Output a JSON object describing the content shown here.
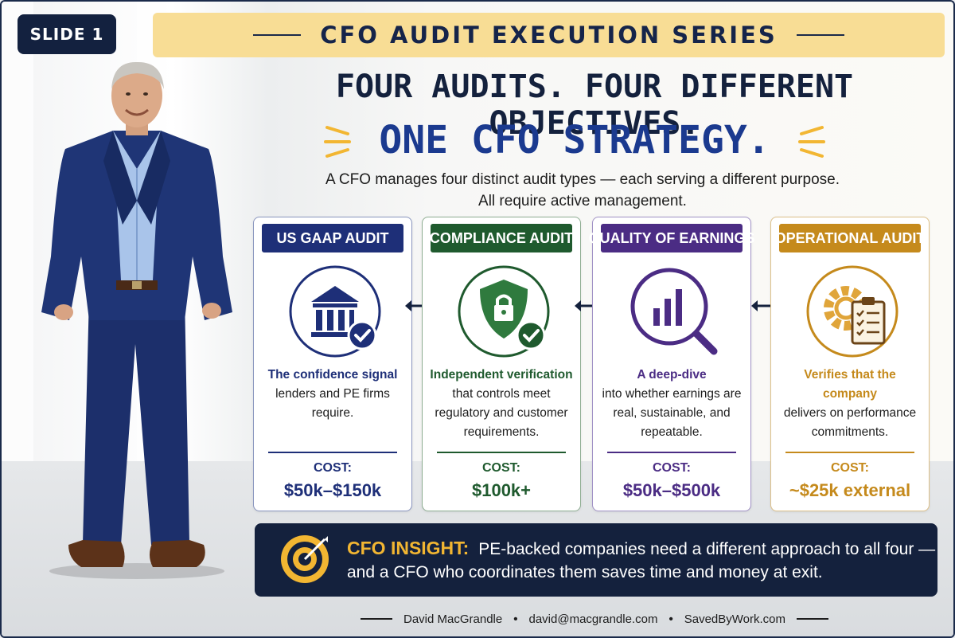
{
  "slide_badge": "SLIDE 1",
  "series_title": "CFO AUDIT EXECUTION SERIES",
  "headline": "FOUR AUDITS. FOUR DIFFERENT OBJECTIVES.",
  "subheadline": "ONE CFO STRATEGY.",
  "intro": {
    "line1": "A CFO manages four distinct audit types — each serving a different purpose.",
    "line2": "All require active management."
  },
  "cards": [
    {
      "title": "US GAAP AUDIT",
      "icon": "bank-check-icon",
      "color": "#1e2f78",
      "desc_strong": "The confidence signal",
      "desc_rest": "lenders and PE firms require.",
      "cost_label": "COST:",
      "cost_value": "$50k–$150k"
    },
    {
      "title": "COMPLIANCE AUDIT",
      "icon": "shield-lock-icon",
      "color": "#1f5a2e",
      "desc_strong": "Independent verification",
      "desc_rest": "that controls meet regulatory and customer requirements.",
      "cost_label": "COST:",
      "cost_value": "$100k+"
    },
    {
      "title": "QUALITY OF EARNINGS",
      "icon": "magnifier-chart-icon",
      "color": "#4b2c84",
      "desc_strong": "A deep-dive",
      "desc_rest": "into whether earnings are real, sustainable, and repeatable.",
      "cost_label": "COST:",
      "cost_value": "$50k–$500k"
    },
    {
      "title": "OPERATIONAL AUDIT",
      "icon": "gear-clipboard-icon",
      "color": "#c58a1c",
      "desc_strong": "Verifies that the company",
      "desc_rest": "delivers on performance commitments.",
      "cost_label": "COST:",
      "cost_value": "~$25k external"
    }
  ],
  "insight": {
    "label": "CFO INSIGHT:",
    "line1": "PE-backed companies need a different approach to all four —",
    "line2": "and a CFO who coordinates them saves time and money at exit."
  },
  "footer": {
    "name": "David MacGrandle",
    "email": "david@macgrandle.com",
    "site": "SavedByWork.com",
    "separator": "•"
  },
  "colors": {
    "navy": "#14213d",
    "gold": "#f8dd95",
    "accent_blue": "#1b3a8f",
    "insight_gold": "#f2b632"
  }
}
